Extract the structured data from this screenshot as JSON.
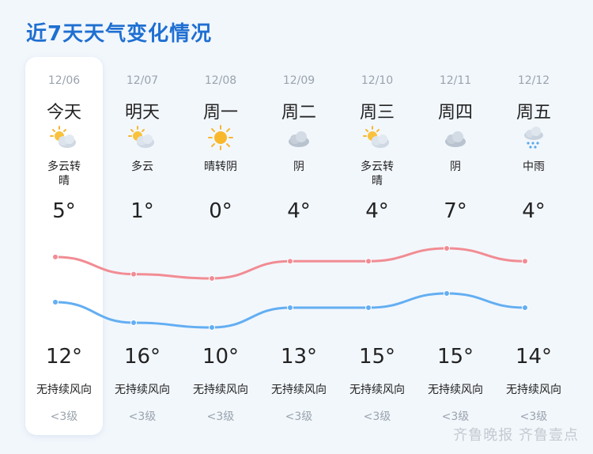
{
  "title": "近7天天气变化情况",
  "days": [
    {
      "date": "12/06",
      "weekday": "今天",
      "icon": "partly-cloudy-icon",
      "desc": "多云转\n晴",
      "low": "5°",
      "high": "12°",
      "wind": "无持续风向",
      "level": "<3级"
    },
    {
      "date": "12/07",
      "weekday": "明天",
      "icon": "partly-cloudy-icon",
      "desc": "多云",
      "low": "1°",
      "high": "16°",
      "wind": "无持续风向",
      "level": "<3级"
    },
    {
      "date": "12/08",
      "weekday": "周一",
      "icon": "sunny-icon",
      "desc": "晴转阴",
      "low": "0°",
      "high": "10°",
      "wind": "无持续风向",
      "level": "<3级"
    },
    {
      "date": "12/09",
      "weekday": "周二",
      "icon": "cloudy-icon",
      "desc": "阴",
      "low": "4°",
      "high": "13°",
      "wind": "无持续风向",
      "level": "<3级"
    },
    {
      "date": "12/10",
      "weekday": "周三",
      "icon": "partly-cloudy-icon",
      "desc": "多云转\n晴",
      "low": "4°",
      "high": "15°",
      "wind": "无持续风向",
      "level": "<3级"
    },
    {
      "date": "12/11",
      "weekday": "周四",
      "icon": "cloudy-icon",
      "desc": "阴",
      "low": "7°",
      "high": "15°",
      "wind": "无持续风向",
      "level": "<3级"
    },
    {
      "date": "12/12",
      "weekday": "周五",
      "icon": "rain-icon",
      "desc": "中雨",
      "low": "4°",
      "high": "14°",
      "wind": "无持续风向",
      "level": "<3级"
    }
  ],
  "colors": {
    "title": "#1f6fd1",
    "upper_line": "#f28c93",
    "lower_line": "#63aef2",
    "background": "#f2f7fc",
    "card": "#ffffff"
  },
  "watermark": "齐鲁晚报 齐鲁壹点"
}
